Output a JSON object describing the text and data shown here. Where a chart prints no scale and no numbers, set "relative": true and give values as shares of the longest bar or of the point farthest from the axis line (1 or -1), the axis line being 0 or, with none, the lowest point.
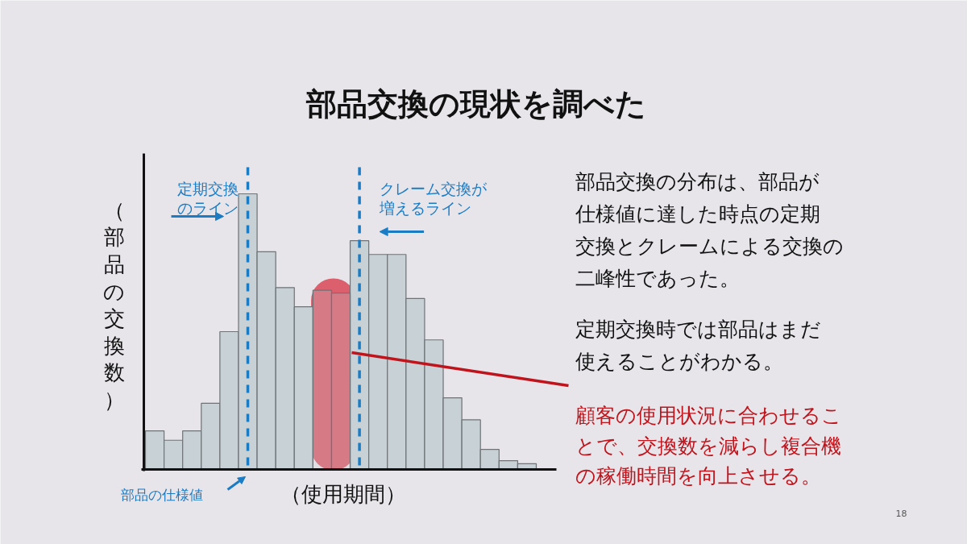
{
  "chart_data": {
    "type": "bar",
    "title": "部品交換の現状を調べた",
    "xlabel": "（使用期間）",
    "ylabel": "（部品の交換数）",
    "categories": [
      null,
      null,
      null,
      null,
      null,
      null,
      null,
      null,
      null,
      null,
      null,
      null,
      null,
      null,
      null,
      null,
      null,
      null,
      null,
      null,
      null
    ],
    "values": [
      0.14,
      0.106,
      0.14,
      0.24,
      0.5,
      1,
      0.79,
      0.66,
      0.59,
      0.65,
      0.64,
      0.83,
      0.78,
      0.78,
      0.62,
      0.47,
      0.26,
      0.18,
      0.073,
      0.032,
      0.021
    ],
    "color": "#c8d1d5",
    "relative": true,
    "annotations": [
      "部品の仕様値",
      "定期交換",
      "のライン",
      "クレーム交換が",
      "増えるライン",
      "部品交換の分布は、部品が",
      "仕様値に達した時点の定期",
      "交換とクレームによる交換の",
      "二峰性であった。",
      "定期交換時では部品はまだ",
      "使えることがわかる。",
      "顧客の使用状況に合わせるこ",
      "とで、交換数を減らし複合機",
      "の稼働時間を向上させる。",
      "18"
    ]
  }
}
